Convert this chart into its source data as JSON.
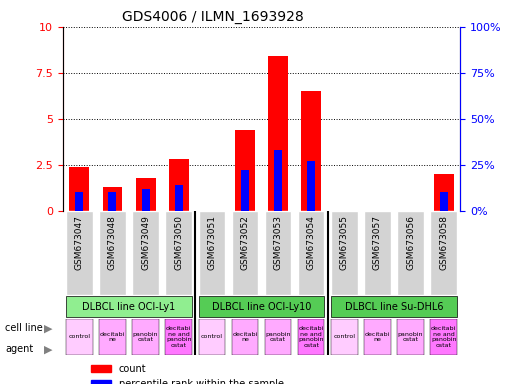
{
  "title": "GDS4006 / ILMN_1693928",
  "samples": [
    "GSM673047",
    "GSM673048",
    "GSM673049",
    "GSM673050",
    "GSM673051",
    "GSM673052",
    "GSM673053",
    "GSM673054",
    "GSM673055",
    "GSM673057",
    "GSM673056",
    "GSM673058"
  ],
  "count_values": [
    2.4,
    1.3,
    1.8,
    2.8,
    0.0,
    4.4,
    8.4,
    6.5,
    0.0,
    0.0,
    0.0,
    2.0
  ],
  "percentile_values": [
    10.0,
    10.0,
    12.0,
    14.0,
    0.0,
    22.0,
    33.0,
    27.0,
    0.0,
    0.0,
    0.0,
    10.0
  ],
  "ylim_left": [
    0,
    10
  ],
  "ylim_right": [
    0,
    100
  ],
  "yticks_left": [
    0,
    2.5,
    5,
    7.5,
    10
  ],
  "yticks_right": [
    0,
    25,
    50,
    75,
    100
  ],
  "cell_lines": [
    {
      "label": "DLBCL line OCI-Ly1",
      "start": 0,
      "end": 4,
      "color": "#90EE90"
    },
    {
      "label": "DLBCL line OCI-Ly10",
      "start": 4,
      "end": 8,
      "color": "#00CC44"
    },
    {
      "label": "DLBCL line Su-DHL6",
      "start": 8,
      "end": 12,
      "color": "#44BB44"
    }
  ],
  "agents": [
    "control",
    "decitabine",
    "panobin\nostat",
    "decitabi\nne and\npanobin\nostat",
    "control",
    "decitabi\nne",
    "panobin\nostat",
    "decitabi\nne and\npanobin\nostat",
    "control",
    "decitabi\nne",
    "panobin\nostat",
    "decitabi\nne and\npanobin\nostat"
  ],
  "agent_colors": [
    "#FFAAFF",
    "#FF88FF",
    "#FF88FF",
    "#FF44FF",
    "#FFAAFF",
    "#FF88FF",
    "#FF88FF",
    "#FF44FF",
    "#FFAAFF",
    "#FF88FF",
    "#FF88FF",
    "#FF44FF"
  ],
  "bar_color_red": "#FF0000",
  "bar_color_blue": "#0000FF",
  "bar_width": 0.6,
  "tick_bg_color": "#D3D3D3",
  "cell_line_green1": "#90EE90",
  "cell_line_green2": "#55DD55",
  "cell_line_green3": "#44CC44",
  "agent_pink_light": "#FFAAFF",
  "agent_pink_mid": "#FF88EE",
  "agent_pink_dark": "#FF55DD"
}
